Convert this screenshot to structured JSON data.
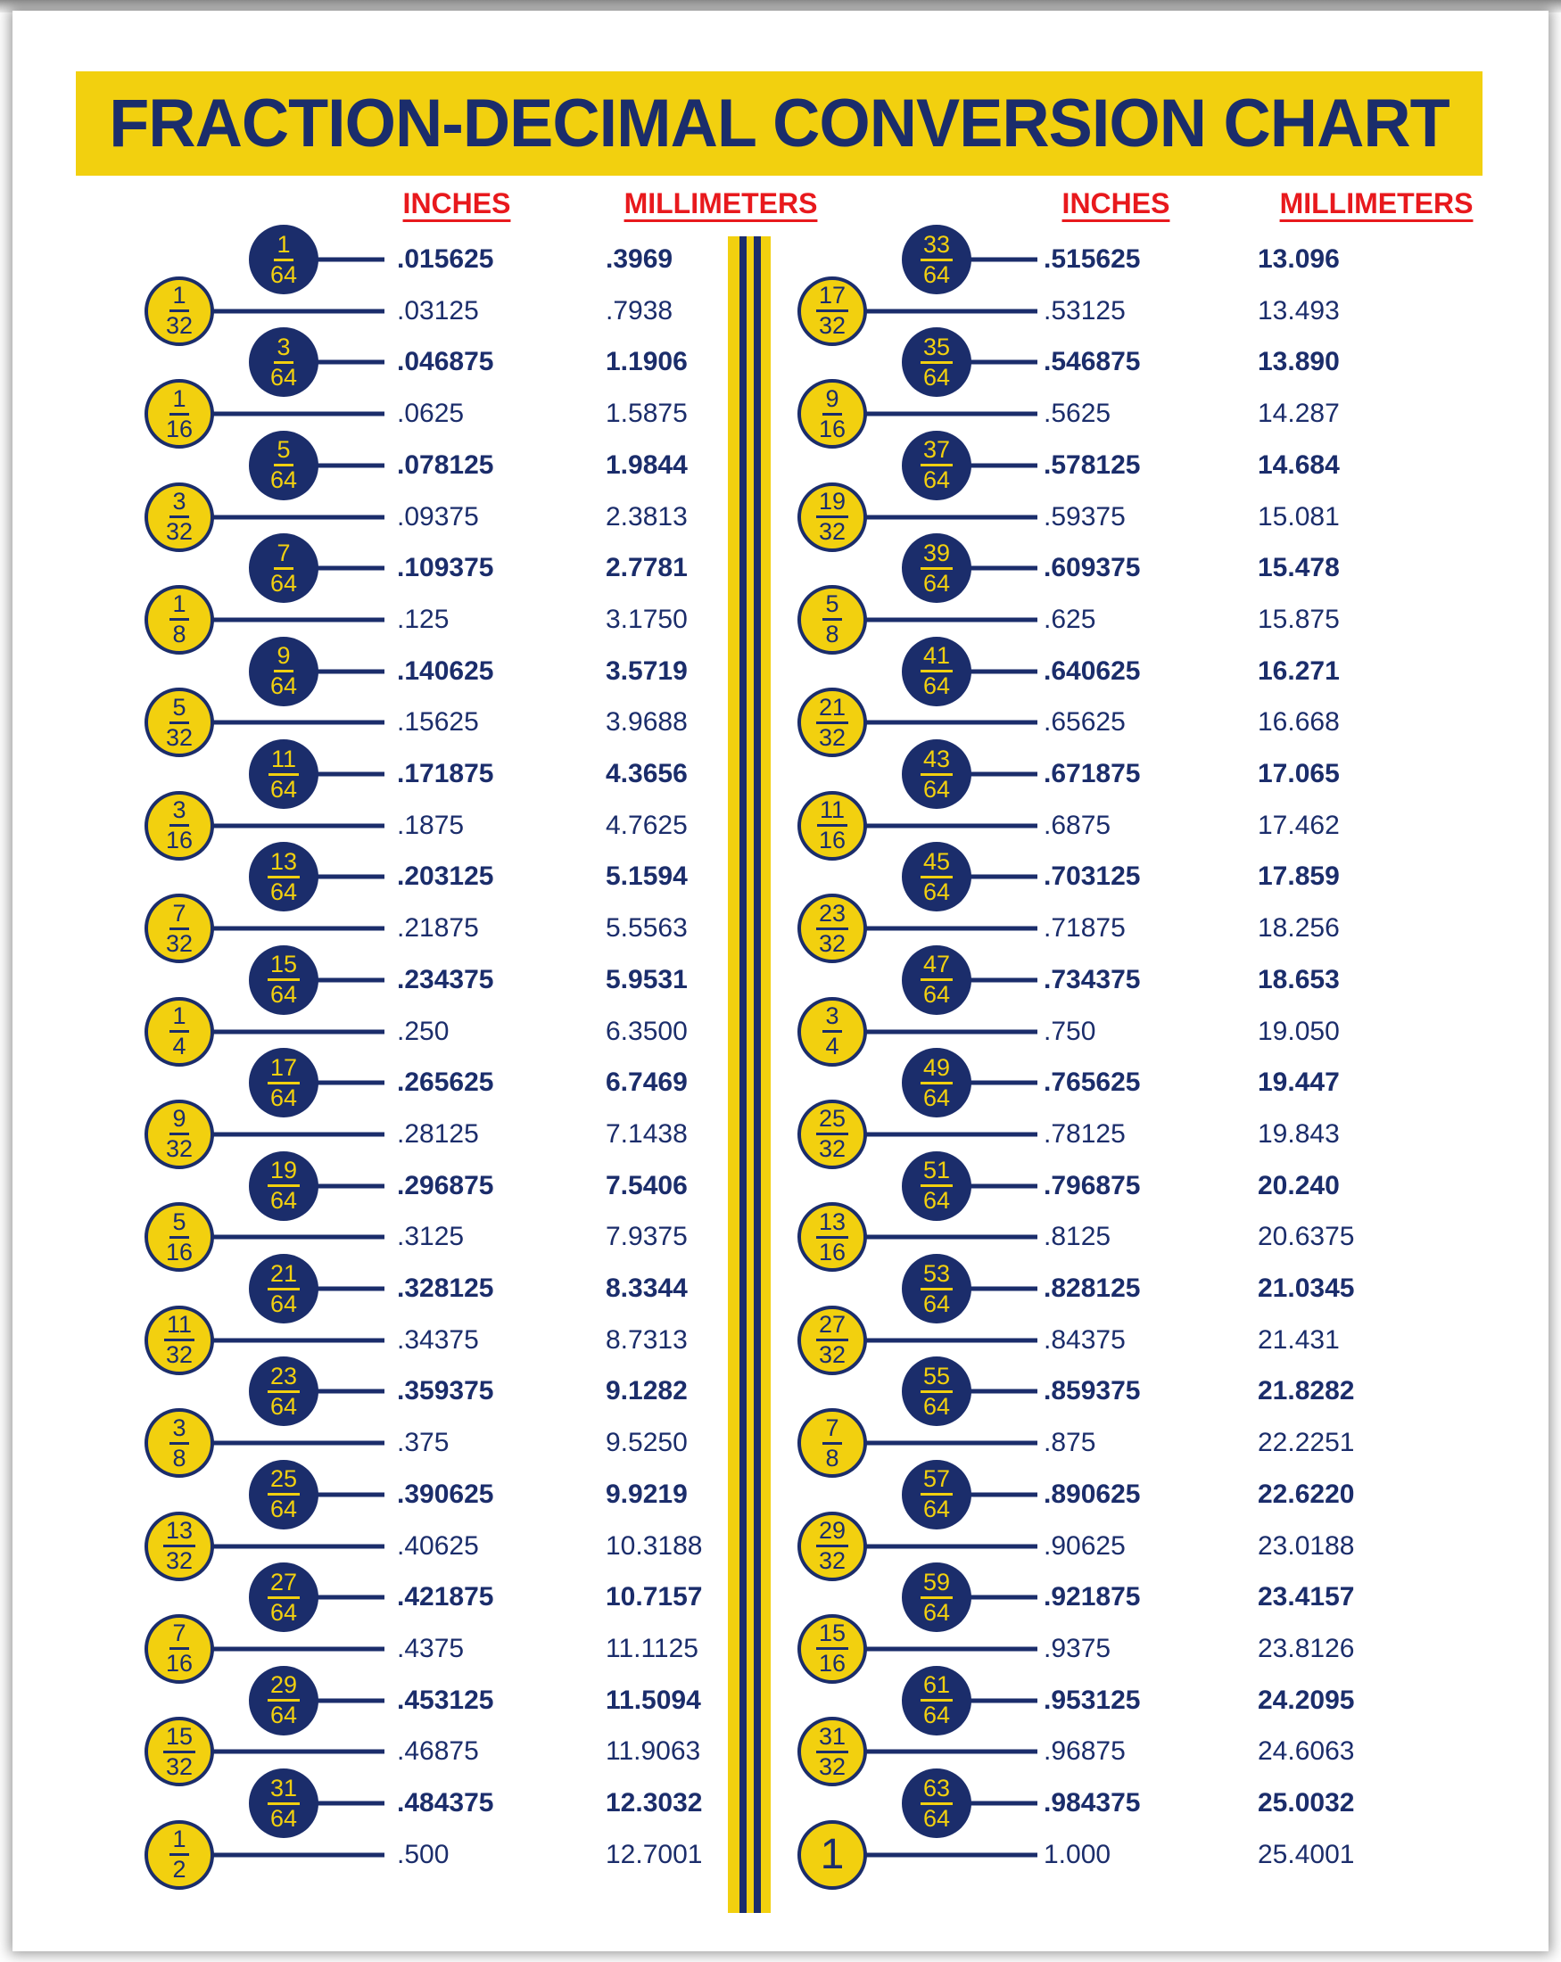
{
  "title": "FRACTION-DECIMAL CONVERSION CHART",
  "colors": {
    "navy": "#1b2d6b",
    "yellow": "#f2d00f",
    "red": "#e8191d"
  },
  "columns": [
    {
      "inches_header": "INCHES",
      "millimeters_header": "MILLIMETERS",
      "rows": [
        {
          "fraction": "1/64",
          "circle": "navy",
          "inches": ".015625",
          "millimeters": ".3969"
        },
        {
          "fraction": "1/32",
          "circle": "yellow",
          "inches": ".03125",
          "millimeters": ".7938"
        },
        {
          "fraction": "3/64",
          "circle": "navy",
          "inches": ".046875",
          "millimeters": "1.1906"
        },
        {
          "fraction": "1/16",
          "circle": "yellow",
          "inches": ".0625",
          "millimeters": "1.5875"
        },
        {
          "fraction": "5/64",
          "circle": "navy",
          "inches": ".078125",
          "millimeters": "1.9844"
        },
        {
          "fraction": "3/32",
          "circle": "yellow",
          "inches": ".09375",
          "millimeters": "2.3813"
        },
        {
          "fraction": "7/64",
          "circle": "navy",
          "inches": ".109375",
          "millimeters": "2.7781"
        },
        {
          "fraction": "1/8",
          "circle": "yellow",
          "inches": ".125",
          "millimeters": "3.1750"
        },
        {
          "fraction": "9/64",
          "circle": "navy",
          "inches": ".140625",
          "millimeters": "3.5719"
        },
        {
          "fraction": "5/32",
          "circle": "yellow",
          "inches": ".15625",
          "millimeters": "3.9688"
        },
        {
          "fraction": "11/64",
          "circle": "navy",
          "inches": ".171875",
          "millimeters": "4.3656"
        },
        {
          "fraction": "3/16",
          "circle": "yellow",
          "inches": ".1875",
          "millimeters": "4.7625"
        },
        {
          "fraction": "13/64",
          "circle": "navy",
          "inches": ".203125",
          "millimeters": "5.1594"
        },
        {
          "fraction": "7/32",
          "circle": "yellow",
          "inches": ".21875",
          "millimeters": "5.5563"
        },
        {
          "fraction": "15/64",
          "circle": "navy",
          "inches": ".234375",
          "millimeters": "5.9531"
        },
        {
          "fraction": "1/4",
          "circle": "yellow",
          "inches": ".250",
          "millimeters": "6.3500"
        },
        {
          "fraction": "17/64",
          "circle": "navy",
          "inches": ".265625",
          "millimeters": "6.7469"
        },
        {
          "fraction": "9/32",
          "circle": "yellow",
          "inches": ".28125",
          "millimeters": "7.1438"
        },
        {
          "fraction": "19/64",
          "circle": "navy",
          "inches": ".296875",
          "millimeters": "7.5406"
        },
        {
          "fraction": "5/16",
          "circle": "yellow",
          "inches": ".3125",
          "millimeters": "7.9375"
        },
        {
          "fraction": "21/64",
          "circle": "navy",
          "inches": ".328125",
          "millimeters": "8.3344"
        },
        {
          "fraction": "11/32",
          "circle": "yellow",
          "inches": ".34375",
          "millimeters": "8.7313"
        },
        {
          "fraction": "23/64",
          "circle": "navy",
          "inches": ".359375",
          "millimeters": "9.1282"
        },
        {
          "fraction": "3/8",
          "circle": "yellow",
          "inches": ".375",
          "millimeters": "9.5250"
        },
        {
          "fraction": "25/64",
          "circle": "navy",
          "inches": ".390625",
          "millimeters": "9.9219"
        },
        {
          "fraction": "13/32",
          "circle": "yellow",
          "inches": ".40625",
          "millimeters": "10.3188"
        },
        {
          "fraction": "27/64",
          "circle": "navy",
          "inches": ".421875",
          "millimeters": "10.7157"
        },
        {
          "fraction": "7/16",
          "circle": "yellow",
          "inches": ".4375",
          "millimeters": "11.1125"
        },
        {
          "fraction": "29/64",
          "circle": "navy",
          "inches": ".453125",
          "millimeters": "11.5094"
        },
        {
          "fraction": "15/32",
          "circle": "yellow",
          "inches": ".46875",
          "millimeters": "11.9063"
        },
        {
          "fraction": "31/64",
          "circle": "navy",
          "inches": ".484375",
          "millimeters": "12.3032"
        },
        {
          "fraction": "1/2",
          "circle": "yellow",
          "inches": ".500",
          "millimeters": "12.7001"
        }
      ]
    },
    {
      "inches_header": "INCHES",
      "millimeters_header": "MILLIMETERS",
      "rows": [
        {
          "fraction": "33/64",
          "circle": "navy",
          "inches": ".515625",
          "millimeters": "13.096"
        },
        {
          "fraction": "17/32",
          "circle": "yellow",
          "inches": ".53125",
          "millimeters": "13.493"
        },
        {
          "fraction": "35/64",
          "circle": "navy",
          "inches": ".546875",
          "millimeters": "13.890"
        },
        {
          "fraction": "9/16",
          "circle": "yellow",
          "inches": ".5625",
          "millimeters": "14.287"
        },
        {
          "fraction": "37/64",
          "circle": "navy",
          "inches": ".578125",
          "millimeters": "14.684"
        },
        {
          "fraction": "19/32",
          "circle": "yellow",
          "inches": ".59375",
          "millimeters": "15.081"
        },
        {
          "fraction": "39/64",
          "circle": "navy",
          "inches": ".609375",
          "millimeters": "15.478"
        },
        {
          "fraction": "5/8",
          "circle": "yellow",
          "inches": ".625",
          "millimeters": "15.875"
        },
        {
          "fraction": "41/64",
          "circle": "navy",
          "inches": ".640625",
          "millimeters": "16.271"
        },
        {
          "fraction": "21/32",
          "circle": "yellow",
          "inches": ".65625",
          "millimeters": "16.668"
        },
        {
          "fraction": "43/64",
          "circle": "navy",
          "inches": ".671875",
          "millimeters": "17.065"
        },
        {
          "fraction": "11/16",
          "circle": "yellow",
          "inches": ".6875",
          "millimeters": "17.462"
        },
        {
          "fraction": "45/64",
          "circle": "navy",
          "inches": ".703125",
          "millimeters": "17.859"
        },
        {
          "fraction": "23/32",
          "circle": "yellow",
          "inches": ".71875",
          "millimeters": "18.256"
        },
        {
          "fraction": "47/64",
          "circle": "navy",
          "inches": ".734375",
          "millimeters": "18.653"
        },
        {
          "fraction": "3/4",
          "circle": "yellow",
          "inches": ".750",
          "millimeters": "19.050"
        },
        {
          "fraction": "49/64",
          "circle": "navy",
          "inches": ".765625",
          "millimeters": "19.447"
        },
        {
          "fraction": "25/32",
          "circle": "yellow",
          "inches": ".78125",
          "millimeters": "19.843"
        },
        {
          "fraction": "51/64",
          "circle": "navy",
          "inches": ".796875",
          "millimeters": "20.240"
        },
        {
          "fraction": "13/16",
          "circle": "yellow",
          "inches": ".8125",
          "millimeters": "20.6375"
        },
        {
          "fraction": "53/64",
          "circle": "navy",
          "inches": ".828125",
          "millimeters": "21.0345"
        },
        {
          "fraction": "27/32",
          "circle": "yellow",
          "inches": ".84375",
          "millimeters": "21.431"
        },
        {
          "fraction": "55/64",
          "circle": "navy",
          "inches": ".859375",
          "millimeters": "21.8282"
        },
        {
          "fraction": "7/8",
          "circle": "yellow",
          "inches": ".875",
          "millimeters": "22.2251"
        },
        {
          "fraction": "57/64",
          "circle": "navy",
          "inches": ".890625",
          "millimeters": "22.6220"
        },
        {
          "fraction": "29/32",
          "circle": "yellow",
          "inches": ".90625",
          "millimeters": "23.0188"
        },
        {
          "fraction": "59/64",
          "circle": "navy",
          "inches": ".921875",
          "millimeters": "23.4157"
        },
        {
          "fraction": "15/16",
          "circle": "yellow",
          "inches": ".9375",
          "millimeters": "23.8126"
        },
        {
          "fraction": "61/64",
          "circle": "navy",
          "inches": ".953125",
          "millimeters": "24.2095"
        },
        {
          "fraction": "31/32",
          "circle": "yellow",
          "inches": ".96875",
          "millimeters": "24.6063"
        },
        {
          "fraction": "63/64",
          "circle": "navy",
          "inches": ".984375",
          "millimeters": "25.0032"
        },
        {
          "fraction": "1",
          "circle": "yellow",
          "inches": "1.000",
          "millimeters": "25.4001"
        }
      ]
    }
  ]
}
